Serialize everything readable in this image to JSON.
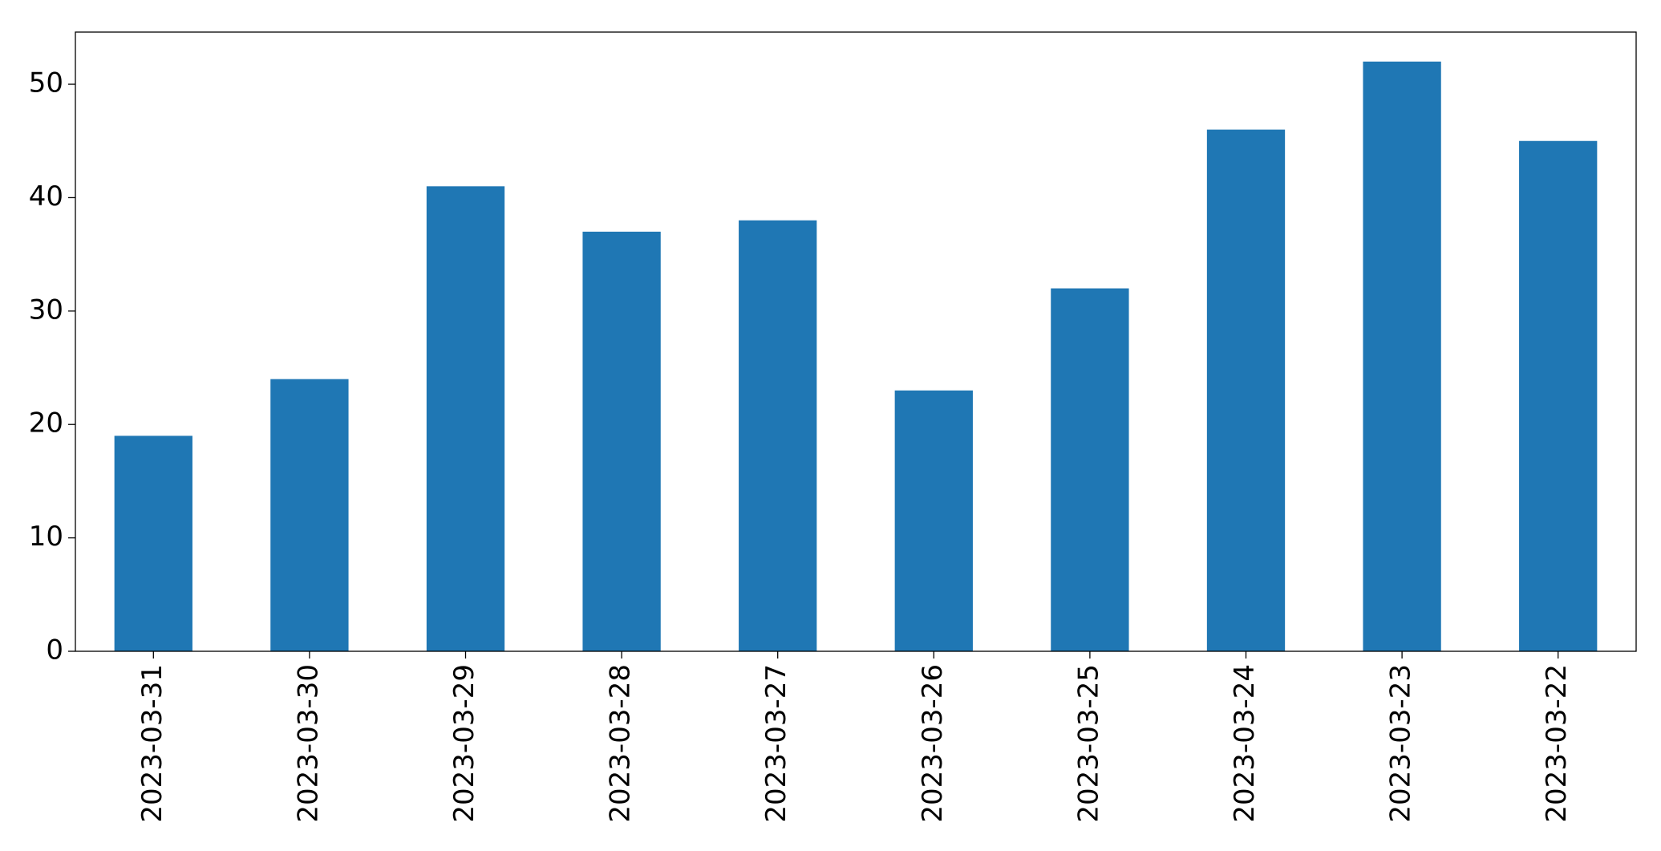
{
  "chart_data": {
    "type": "bar",
    "categories": [
      "2023-03-31",
      "2023-03-30",
      "2023-03-29",
      "2023-03-28",
      "2023-03-27",
      "2023-03-26",
      "2023-03-25",
      "2023-03-24",
      "2023-03-23",
      "2023-03-22"
    ],
    "values": [
      19,
      24,
      41,
      37,
      38,
      23,
      32,
      46,
      52,
      45
    ],
    "color": "#1f77b4",
    "ylim": [
      0,
      54.6
    ],
    "yticks": [
      0,
      10,
      20,
      30,
      40,
      50
    ],
    "grid": false
  }
}
